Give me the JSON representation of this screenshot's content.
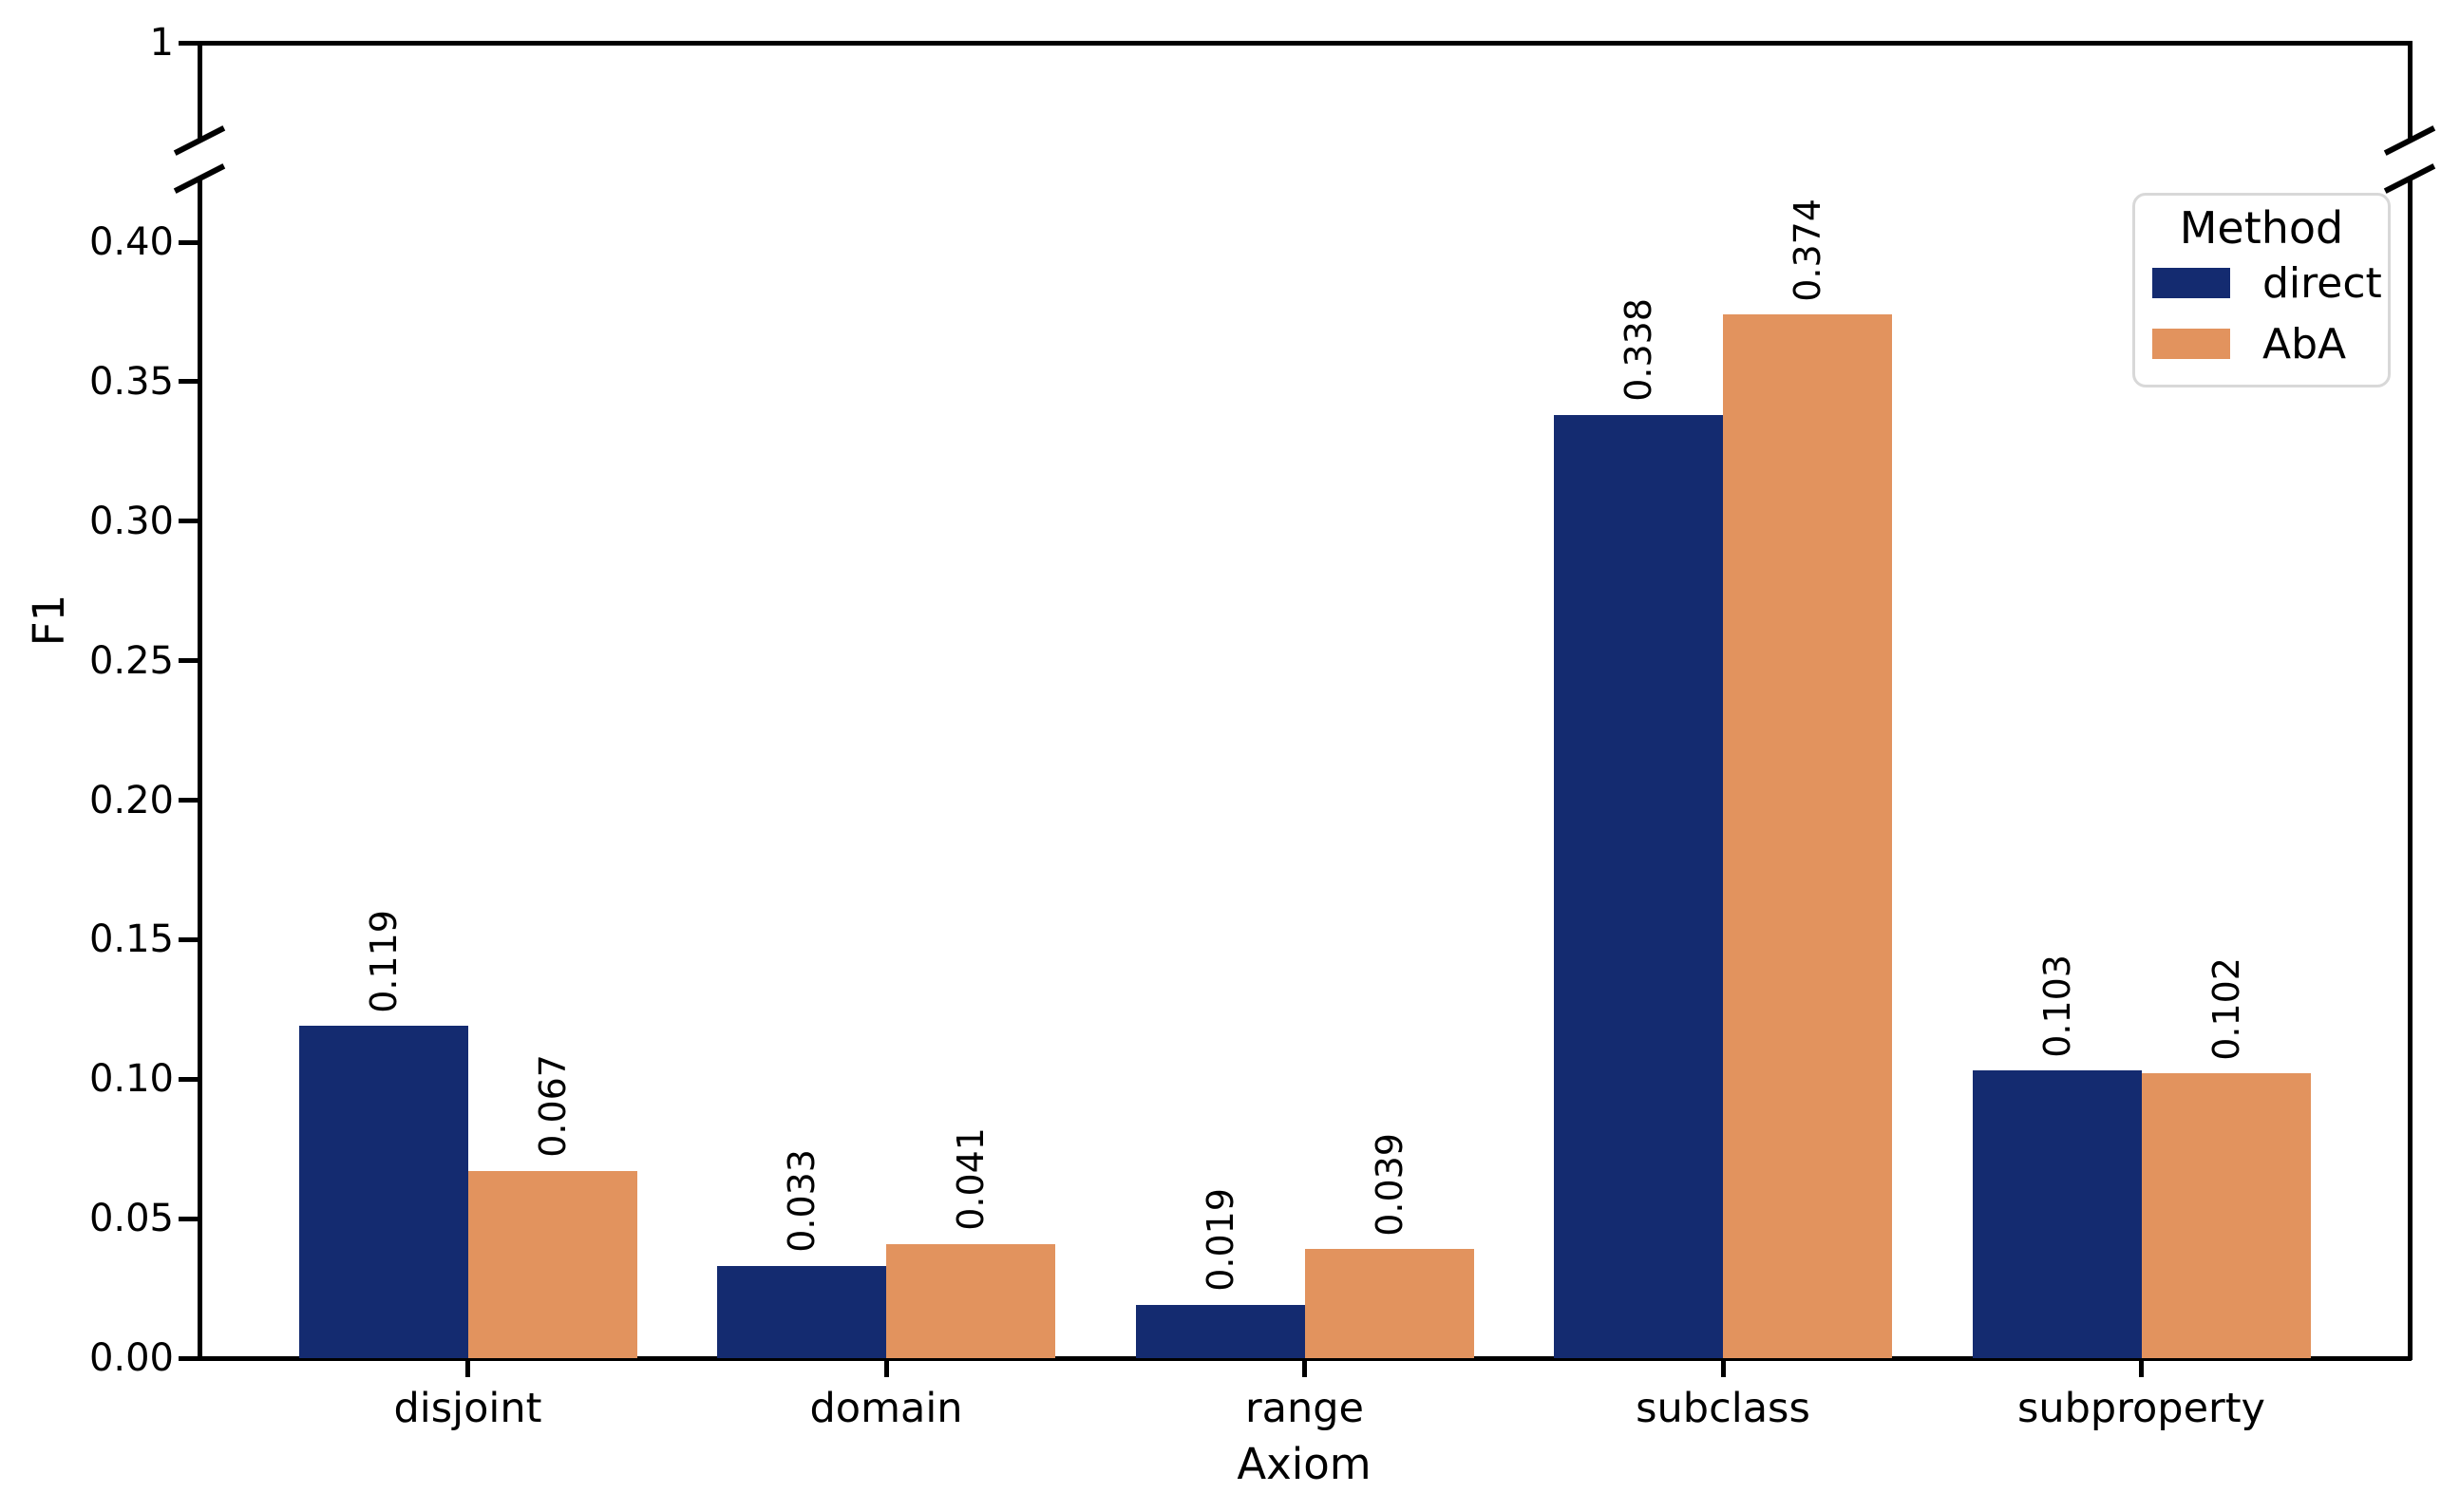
{
  "chart_data": {
    "type": "bar",
    "title": "",
    "categories": [
      "disjoint",
      "domain",
      "range",
      "subclass",
      "subproperty"
    ],
    "series": [
      {
        "name": "direct",
        "color": "#142b70",
        "values": [
          0.119,
          0.033,
          0.019,
          0.338,
          0.103
        ],
        "value_labels": [
          "0.119",
          "0.033",
          "0.019",
          "0.338",
          "0.103"
        ]
      },
      {
        "name": "AbA",
        "color": "#e2935e",
        "values": [
          0.067,
          0.041,
          0.039,
          0.374,
          0.102
        ],
        "value_labels": [
          "0.067",
          "0.041",
          "0.039",
          "0.374",
          "0.102"
        ]
      }
    ],
    "xlabel": "Axiom",
    "ylabel": "F1",
    "y_axis": {
      "broken_axis": true,
      "main_ticks": [
        {
          "label": "0.00",
          "value": 0.0
        },
        {
          "label": "0.05",
          "value": 0.05
        },
        {
          "label": "0.10",
          "value": 0.1
        },
        {
          "label": "0.15",
          "value": 0.15
        },
        {
          "label": "0.20",
          "value": 0.2
        },
        {
          "label": "0.25",
          "value": 0.25
        },
        {
          "label": "0.30",
          "value": 0.3
        },
        {
          "label": "0.35",
          "value": 0.35
        },
        {
          "label": "0.40",
          "value": 0.4
        }
      ],
      "main_range": [
        0,
        0.419
      ],
      "top_segment_tick": {
        "label": "1",
        "value": 1
      },
      "top_segment_max": 1
    },
    "legend": {
      "title": "Method",
      "position": "upper right",
      "entries": [
        {
          "label": "direct",
          "color": "#142b70"
        },
        {
          "label": "AbA",
          "color": "#e2935e"
        }
      ]
    },
    "grid": false,
    "colors": {
      "background": "#ffffff",
      "spine": "#000000",
      "text": "#000000",
      "legend_border": "#d8d8d8"
    }
  }
}
